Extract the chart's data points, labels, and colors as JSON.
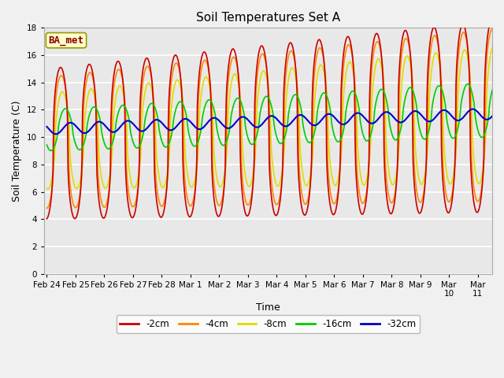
{
  "title": "Soil Temperatures Set A",
  "xlabel": "Time",
  "ylabel": "Soil Temperature (C)",
  "ylim": [
    0,
    18
  ],
  "annotation": "BA_met",
  "series_colors": {
    "-2cm": "#cc0000",
    "-4cm": "#ff8800",
    "-8cm": "#dddd00",
    "-16cm": "#00cc00",
    "-32cm": "#0000cc"
  },
  "series_labels": [
    "-2cm",
    "-4cm",
    "-8cm",
    "-16cm",
    "-32cm"
  ],
  "x_tick_labels": [
    "Feb 24",
    "Feb 25",
    "Feb 26",
    "Feb 27",
    "Feb 28",
    "Mar 1",
    "Mar 2",
    "Mar 3",
    "Mar 4",
    "Mar 5",
    "Mar 6",
    "Mar 7",
    "Mar 8",
    "Mar 9",
    "Mar 10",
    "Mar 11"
  ],
  "background_color": "#e8e8e8",
  "fig_facecolor": "#f0f0f0",
  "legend_bg": "#ffffcc"
}
